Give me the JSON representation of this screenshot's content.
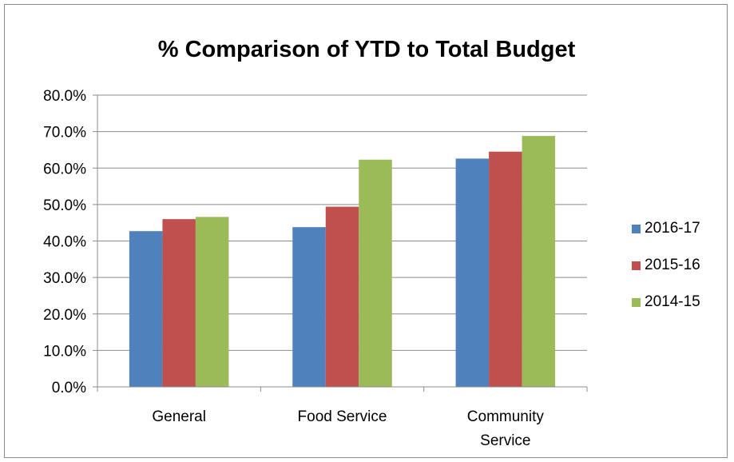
{
  "chart_data": {
    "type": "bar",
    "title": "% Comparison of YTD to Total Budget",
    "xlabel": "",
    "ylabel": "",
    "categories": [
      "General",
      "Food Service",
      "Community Service"
    ],
    "category_lines": [
      [
        "General"
      ],
      [
        "Food Service"
      ],
      [
        "Community",
        "Service"
      ]
    ],
    "series": [
      {
        "name": "2016-17",
        "color": "#4f81bd",
        "values": [
          42.7,
          43.8,
          62.6
        ]
      },
      {
        "name": "2015-16",
        "color": "#c0504d",
        "values": [
          46.0,
          49.4,
          64.5
        ]
      },
      {
        "name": "2014-15",
        "color": "#9bbb59",
        "values": [
          46.6,
          62.3,
          68.8
        ]
      }
    ],
    "ylim": [
      0,
      80
    ],
    "y_ticks": [
      0,
      10,
      20,
      30,
      40,
      50,
      60,
      70,
      80
    ],
    "y_tick_labels": [
      "0.0%",
      "10.0%",
      "20.0%",
      "30.0%",
      "40.0%",
      "50.0%",
      "60.0%",
      "70.0%",
      "80.0%"
    ],
    "grid": true,
    "legend_position": "right"
  }
}
